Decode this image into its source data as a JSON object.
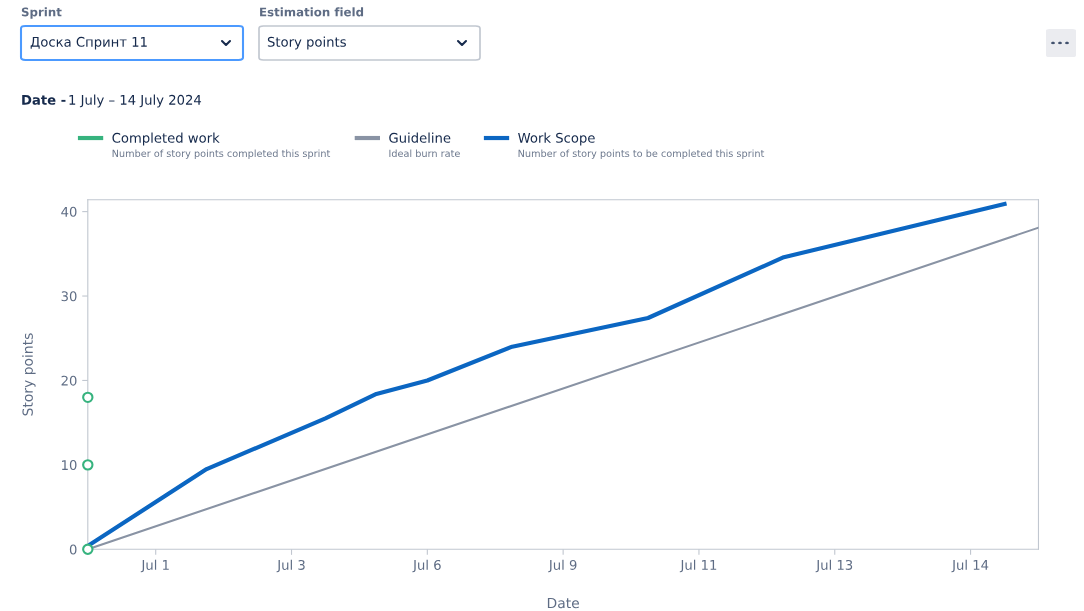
{
  "chart_data": {
    "type": "line",
    "title": "Date -",
    "subtitle": "1 July – 14 July 2024",
    "xlabel": "Date",
    "ylabel": "Story points",
    "categories": [
      null,
      null,
      null,
      null,
      "Jul 1",
      null,
      null,
      null,
      null,
      null,
      null,
      null,
      "Jul 3",
      null,
      null,
      null,
      null,
      null,
      null,
      null,
      "Jul 6",
      null,
      null,
      null,
      null,
      null,
      null,
      null,
      "Jul 9",
      null,
      null,
      null,
      null,
      null,
      null,
      null,
      "Jul 11",
      null,
      null,
      null,
      null,
      null,
      null,
      null,
      "Jul 13",
      null,
      null,
      null,
      null,
      null,
      null,
      null,
      "Jul 14",
      null,
      null,
      null,
      null
    ],
    "ylim": [
      0,
      41.4
    ],
    "yticks": [
      0,
      10,
      20,
      30,
      40
    ],
    "legend": "top",
    "line_style": "solid",
    "series": [
      {
        "name": "Completed work",
        "type": "scatter",
        "color": "#36b37e",
        "marker": "circle",
        "values": [
          18,
          null,
          null,
          null,
          null,
          null,
          null,
          null,
          null,
          null,
          null,
          null,
          null,
          null,
          null,
          null,
          null,
          null,
          null,
          null,
          null,
          null,
          null,
          null,
          null,
          null,
          null,
          null,
          null,
          null,
          null,
          null,
          null,
          null,
          null,
          null,
          null,
          null,
          null,
          null,
          null,
          null,
          null,
          null,
          null,
          null,
          null,
          null,
          null,
          null,
          null,
          null,
          null,
          null,
          null,
          null,
          null
        ]
      },
      {
        "type": "scatter",
        "color": "#36b37e",
        "marker": "circle",
        "values": [
          10,
          null,
          null,
          null,
          null,
          null,
          null,
          null,
          null,
          null,
          null,
          null,
          null,
          null,
          null,
          null,
          null,
          null,
          null,
          null,
          null,
          null,
          null,
          null,
          null,
          null,
          null,
          null,
          null,
          null,
          null,
          null,
          null,
          null,
          null,
          null,
          null,
          null,
          null,
          null,
          null,
          null,
          null,
          null,
          null,
          null,
          null,
          null,
          null,
          null,
          null,
          null,
          null,
          null,
          null,
          null,
          null
        ]
      },
      {
        "type": "scatter",
        "color": "#36b37e",
        "marker": "circle",
        "values": [
          0,
          null,
          null,
          null,
          null,
          null,
          null,
          null,
          null,
          null,
          null,
          null,
          null,
          null,
          null,
          null,
          null,
          null,
          null,
          null,
          null,
          null,
          null,
          null,
          null,
          null,
          null,
          null,
          null,
          null,
          null,
          null,
          null,
          null,
          null,
          null,
          null,
          null,
          null,
          null,
          null,
          null,
          null,
          null,
          null,
          null,
          null,
          null,
          null,
          null,
          null,
          null,
          null,
          null,
          null,
          null,
          null
        ]
      },
      {
        "name": "Guideline",
        "color": "#8993a4",
        "marker": "none",
        "values": [
          0,
          null,
          null,
          null,
          null,
          null,
          null,
          null,
          null,
          null,
          null,
          null,
          null,
          null,
          null,
          null,
          null,
          null,
          null,
          null,
          null,
          null,
          null,
          null,
          null,
          null,
          null,
          null,
          null,
          null,
          null,
          null,
          null,
          null,
          null,
          null,
          null,
          null,
          null,
          null,
          null,
          null,
          null,
          null,
          null,
          null,
          null,
          null,
          null,
          null,
          null,
          null,
          null,
          null,
          null,
          null,
          38.1
        ]
      },
      {
        "name": "Work Scope",
        "color": "#0b66c2",
        "marker": "none",
        "values": [
          0.4,
          null,
          null,
          null,
          null,
          null,
          null,
          9.5,
          null,
          null,
          null,
          null,
          null,
          null,
          15.5,
          null,
          null,
          18.4,
          null,
          null,
          20,
          null,
          null,
          null,
          null,
          24,
          null,
          null,
          null,
          null,
          null,
          null,
          null,
          27.4,
          null,
          null,
          null,
          null,
          null,
          null,
          null,
          34.6,
          null,
          null,
          null,
          null,
          null,
          null,
          null,
          null,
          null,
          null,
          null,
          null,
          40.9,
          null,
          null
        ]
      }
    ],
    "annotations": [
      "Sprint",
      "Доска Спринт 11",
      "Estimation field",
      "Story points",
      "Number of story points completed this sprint",
      "Ideal burn rate",
      "Number of story points to be completed this sprint"
    ]
  }
}
